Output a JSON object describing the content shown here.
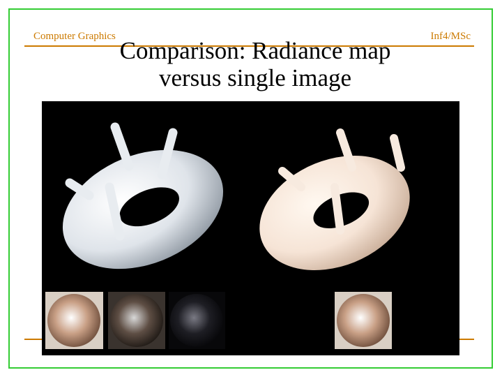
{
  "header": {
    "left": "Computer Graphics",
    "right": "Inf4/MSc"
  },
  "title": {
    "lines": [
      "Comparison: Radiance map",
      "versus single image"
    ]
  }
}
